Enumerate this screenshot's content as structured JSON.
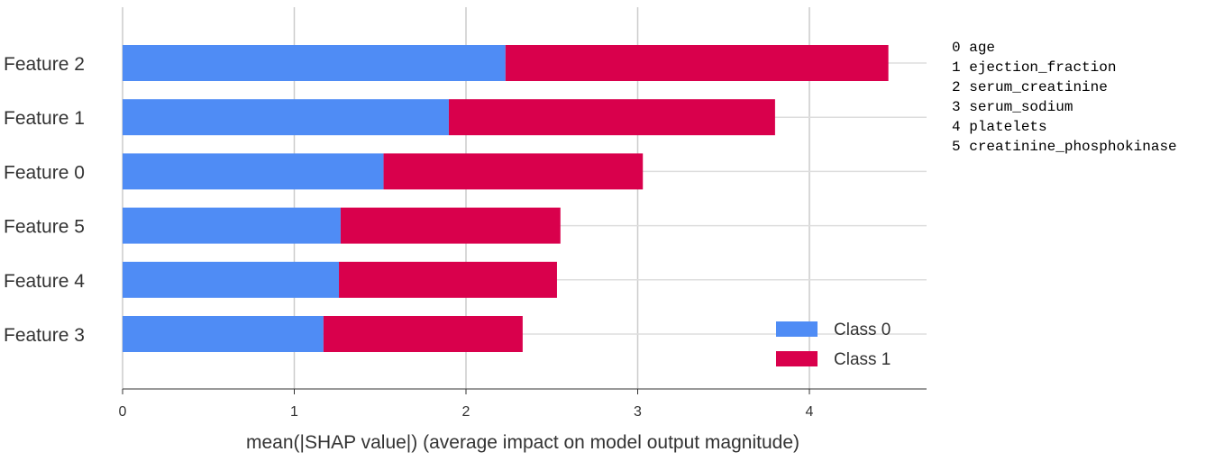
{
  "chart_data": {
    "type": "bar",
    "orientation": "horizontal",
    "stacked": true,
    "categories": [
      "Feature 2",
      "Feature 1",
      "Feature 0",
      "Feature 5",
      "Feature 4",
      "Feature 3"
    ],
    "series": [
      {
        "name": "Class 0",
        "values": [
          2.23,
          1.9,
          1.52,
          1.27,
          1.26,
          1.17
        ]
      },
      {
        "name": "Class 1",
        "values": [
          2.23,
          1.9,
          1.51,
          1.28,
          1.27,
          1.16
        ]
      }
    ],
    "title": "",
    "xlabel": "mean(|SHAP value|) (average impact on model output magnitude)",
    "ylabel": "",
    "xlim": [
      0,
      4.7
    ],
    "xticks": [
      "0",
      "1",
      "2",
      "3",
      "4"
    ],
    "grid": "vertical",
    "legend": "bottom-right"
  },
  "colors": {
    "class0": "#4f8cf5",
    "class1": "#d9004c"
  },
  "feature_mapping": [
    {
      "index": "0",
      "name": "age"
    },
    {
      "index": "1",
      "name": "ejection_fraction"
    },
    {
      "index": "2",
      "name": "serum_creatinine"
    },
    {
      "index": "3",
      "name": "serum_sodium"
    },
    {
      "index": "4",
      "name": "platelets"
    },
    {
      "index": "5",
      "name": "creatinine_phosphokinase"
    }
  ]
}
